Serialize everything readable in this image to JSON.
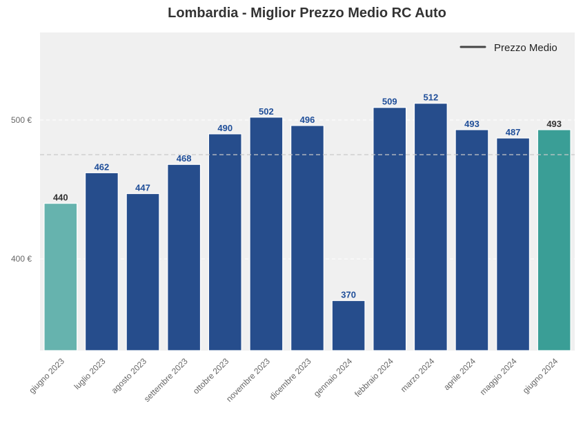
{
  "chart_data": {
    "type": "bar",
    "title": "Lombardia - Miglior Prezzo Medio RC Auto",
    "xlabel": "",
    "ylabel": "",
    "categories": [
      "giugno 2023",
      "luglio 2023",
      "agosto 2023",
      "settembre 2023",
      "ottobre 2023",
      "novembre 2023",
      "dicembre 2023",
      "gennaio 2024",
      "febbraio 2024",
      "marzo 2024",
      "aprile 2024",
      "maggio 2024",
      "giugno 2024"
    ],
    "values": [
      440,
      462,
      447,
      468,
      490,
      502,
      496,
      370,
      509,
      512,
      493,
      487,
      493
    ],
    "bar_colors": [
      "#66b3ae",
      "#264d8c",
      "#264d8c",
      "#264d8c",
      "#264d8c",
      "#264d8c",
      "#264d8c",
      "#264d8c",
      "#264d8c",
      "#264d8c",
      "#264d8c",
      "#264d8c",
      "#3a9e96"
    ],
    "label_colors": [
      "#333333",
      "#1f4e99",
      "#1f4e99",
      "#1f4e99",
      "#1f4e99",
      "#1f4e99",
      "#1f4e99",
      "#1f4e99",
      "#1f4e99",
      "#1f4e99",
      "#1f4e99",
      "#1f4e99",
      "#333333"
    ],
    "ylim": [
      334,
      563
    ],
    "yticks": [
      400,
      500
    ],
    "ytick_labels": [
      "400 €",
      "500 €"
    ],
    "average_line": {
      "label": "Prezzo Medio",
      "value": 475,
      "color": "#c8c8c8",
      "legend_color": "#444444"
    },
    "grid": true,
    "legend_position": "top-right",
    "background": "#f0f0f0"
  }
}
